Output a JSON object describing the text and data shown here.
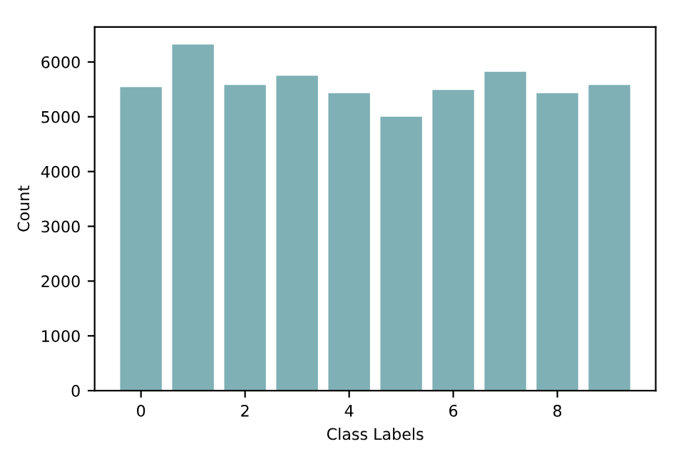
{
  "chart_data": {
    "type": "bar",
    "xlabel": "Class Labels",
    "ylabel": "Count",
    "x": [
      0,
      1,
      2,
      3,
      4,
      5,
      6,
      7,
      8,
      9
    ],
    "values": [
      5540,
      6320,
      5580,
      5750,
      5430,
      5000,
      5490,
      5820,
      5430,
      5580
    ],
    "color": "#7eb0b5",
    "xlim": [
      -0.89,
      9.89
    ],
    "xticks": [
      0,
      2,
      4,
      6,
      8
    ],
    "ylim": [
      0,
      6640
    ],
    "yticks": [
      0,
      1000,
      2000,
      3000,
      4000,
      5000,
      6000
    ],
    "grid": false
  }
}
